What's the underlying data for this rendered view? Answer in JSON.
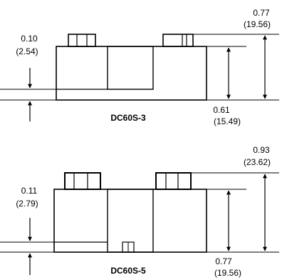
{
  "colors": {
    "line": "#000000",
    "background": "#ffffff"
  },
  "parts": [
    {
      "name": "DC60S-3",
      "total_height": {
        "in": "0.77",
        "mm": "(19.56)"
      },
      "body_height": {
        "in": "0.61",
        "mm": "(15.49)"
      },
      "pin_offset": {
        "in": "0.10",
        "mm": "(2.54)"
      }
    },
    {
      "name": "DC60S-5",
      "total_height": {
        "in": "0.93",
        "mm": "(23.62)"
      },
      "body_height": {
        "in": "0.77",
        "mm": "(19.56)"
      },
      "pin_offset": {
        "in": "0.11",
        "mm": "(2.79)"
      }
    }
  ]
}
